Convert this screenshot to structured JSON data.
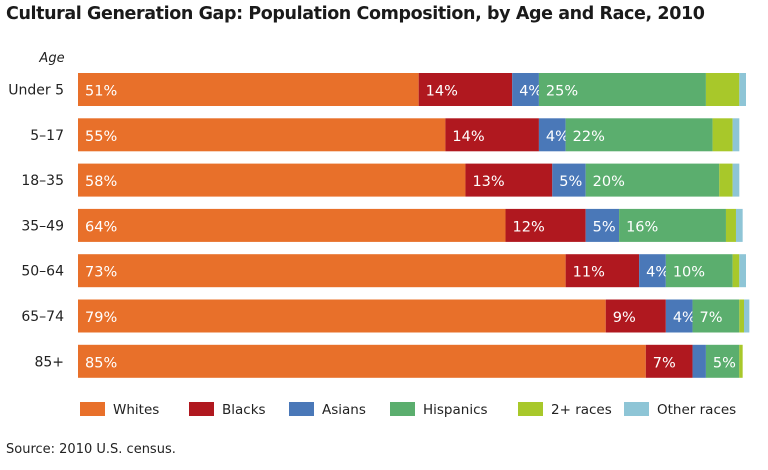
{
  "title": "Cultural Generation Gap: Population Composition, by Age and Race, 2010",
  "source": "Source: 2010 U.S. census.",
  "chart_data": {
    "type": "bar",
    "orientation": "horizontal",
    "stacked": true,
    "title": "Cultural Generation Gap: Population Composition, by Age and Race, 2010",
    "ylabel": "Age",
    "xlim": [
      0,
      100
    ],
    "categories": [
      "Under 5",
      "5–17",
      "18–35",
      "35–49",
      "50–64",
      "65–74",
      "85+"
    ],
    "series": [
      {
        "name": "Whites",
        "color": "#E8702A",
        "values": [
          51,
          55,
          58,
          64,
          73,
          79,
          85
        ],
        "labels": [
          "51%",
          "55%",
          "58%",
          "64%",
          "73%",
          "79%",
          "85%"
        ]
      },
      {
        "name": "Blacks",
        "color": "#B0181F",
        "values": [
          14,
          14,
          13,
          12,
          11,
          9,
          7
        ],
        "labels": [
          "14%",
          "14%",
          "13%",
          "12%",
          "11%",
          "9%",
          "7%"
        ]
      },
      {
        "name": "Asians",
        "color": "#4A78B8",
        "values": [
          4,
          4,
          5,
          5,
          4,
          4,
          2
        ],
        "labels": [
          "4%",
          "4%",
          "5%",
          "5%",
          "4%",
          "4%",
          ""
        ]
      },
      {
        "name": "Hispanics",
        "color": "#5BAE6E",
        "values": [
          25,
          22,
          20,
          16,
          10,
          7,
          5
        ],
        "labels": [
          "25%",
          "22%",
          "20%",
          "16%",
          "10%",
          "7%",
          "5%"
        ]
      },
      {
        "name": "2+ races",
        "color": "#A8C82A",
        "values": [
          5,
          3,
          2,
          1.5,
          1,
          0.7,
          0.5
        ],
        "labels": [
          "",
          "",
          "",
          "",
          "",
          "",
          ""
        ]
      },
      {
        "name": "Other races",
        "color": "#8EC5D6",
        "values": [
          1,
          1,
          1,
          1,
          1,
          0.8,
          0
        ],
        "labels": [
          "",
          "",
          "",
          "",
          "",
          "",
          ""
        ]
      }
    ],
    "legend_position": "bottom",
    "grid": false
  }
}
